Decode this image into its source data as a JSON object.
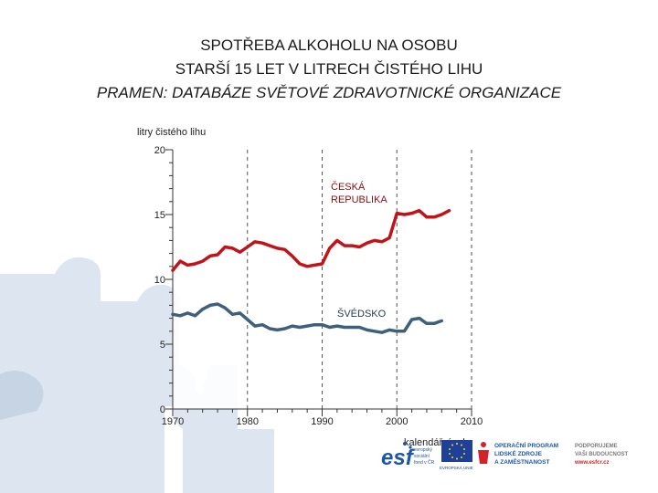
{
  "title_lines": [
    "SPOTŘEBA ALKOHOLU NA OSOBU",
    "STARŠÍ 15 LET V LITRECH ČISTÉHO LIHU",
    "PRAMEN: DATABÁZE SVĚTOVÉ ZDRAVOTNICKÉ ORGANIZACE"
  ],
  "chart_data": {
    "type": "line",
    "ylabel": "litry čistého lihu",
    "xlabel": "kalendářní roky",
    "xlim": [
      1970,
      2010
    ],
    "ylim": [
      0,
      20
    ],
    "xticks": [
      1970,
      1980,
      1990,
      2000,
      2010
    ],
    "yticks": [
      0,
      5,
      10,
      15,
      20
    ],
    "grid": "vertical dashed",
    "series": [
      {
        "name": "ČESKÁ REPUBLIKA",
        "color": "#c0141a",
        "x": [
          1970,
          1971,
          1972,
          1973,
          1974,
          1975,
          1976,
          1977,
          1978,
          1979,
          1980,
          1981,
          1982,
          1983,
          1984,
          1985,
          1986,
          1987,
          1988,
          1989,
          1990,
          1991,
          1992,
          1993,
          1994,
          1995,
          1996,
          1997,
          1998,
          1999,
          2000,
          2001,
          2002,
          2003,
          2004,
          2005,
          2006,
          2007
        ],
        "y": [
          10.7,
          11.4,
          11.1,
          11.2,
          11.4,
          11.8,
          11.9,
          12.5,
          12.4,
          12.1,
          12.5,
          12.9,
          12.8,
          12.6,
          12.4,
          12.3,
          11.8,
          11.2,
          11.0,
          11.1,
          11.2,
          12.4,
          13.0,
          12.6,
          12.6,
          12.5,
          12.8,
          13.0,
          12.9,
          13.2,
          15.1,
          15.0,
          15.1,
          15.3,
          14.8,
          14.8,
          15.0,
          15.3
        ]
      },
      {
        "name": "ŠVÉDSKO",
        "color": "#3f607c",
        "x": [
          1970,
          1971,
          1972,
          1973,
          1974,
          1975,
          1976,
          1977,
          1978,
          1979,
          1980,
          1981,
          1982,
          1983,
          1984,
          1985,
          1986,
          1987,
          1988,
          1989,
          1990,
          1991,
          1992,
          1993,
          1994,
          1995,
          1996,
          1997,
          1998,
          1999,
          2000,
          2001,
          2002,
          2003,
          2004,
          2005,
          2006
        ],
        "y": [
          7.3,
          7.2,
          7.4,
          7.2,
          7.7,
          8.0,
          8.1,
          7.8,
          7.3,
          7.4,
          6.9,
          6.4,
          6.5,
          6.2,
          6.1,
          6.2,
          6.4,
          6.3,
          6.4,
          6.5,
          6.5,
          6.3,
          6.4,
          6.3,
          6.3,
          6.3,
          6.1,
          6.0,
          5.9,
          6.1,
          6.0,
          6.0,
          6.9,
          7.0,
          6.6,
          6.6,
          6.8
        ]
      }
    ],
    "annotations": [
      "ČESKÁ",
      "REPUBLIKA",
      "ŠVÉDSKO"
    ]
  },
  "logos": {
    "esf_label": "esf",
    "esf_sub": [
      "evropský",
      "sociální",
      "fond v ČR"
    ],
    "eu_label": "EVROPSKÁ UNIE",
    "program_lines": [
      "OPERAČNÍ PROGRAM",
      "LIDSKÉ ZDROJE",
      "A ZAMĚSTNANOST"
    ],
    "support_lines": [
      "PODPORUJEME",
      "VAŠI BUDOUCNOST"
    ],
    "url": "www.esfcr.cz",
    "esf_color": "#1e56a6",
    "program_color": "#1e56a6",
    "support_color": "#7a7a7a",
    "url_color": "#d2232a"
  }
}
